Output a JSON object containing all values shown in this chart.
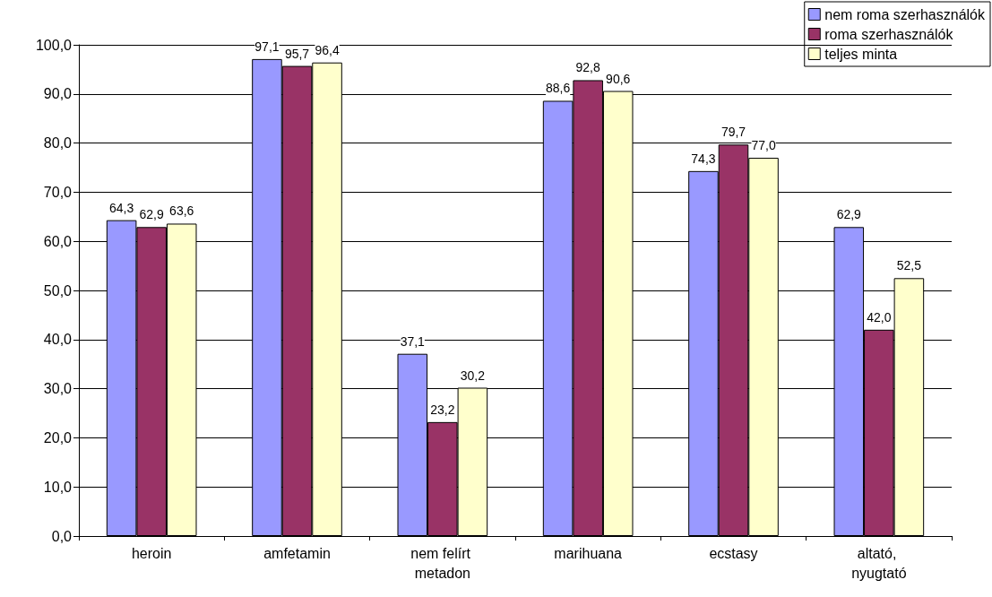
{
  "chart_data": {
    "type": "bar",
    "categories": [
      "heroin",
      "amfetamin",
      "nem felírt metadon",
      "marihuana",
      "ecstasy",
      "altató, nyugtató"
    ],
    "series": [
      {
        "name": "nem roma szerhasználók",
        "color": "#9999ff",
        "values": [
          64.3,
          97.1,
          37.1,
          88.6,
          74.3,
          62.9
        ],
        "value_labels": [
          "64,3",
          "97,1",
          "37,1",
          "88,6",
          "74,3",
          "62,9"
        ]
      },
      {
        "name": "roma szerhasználók",
        "color": "#993366",
        "values": [
          62.9,
          95.7,
          23.2,
          92.8,
          79.7,
          42.0
        ],
        "value_labels": [
          "62,9",
          "95,7",
          "23,2",
          "92,8",
          "79,7",
          "42,0"
        ]
      },
      {
        "name": "teljes minta",
        "color": "#ffffcc",
        "values": [
          63.6,
          96.4,
          30.2,
          90.6,
          77.0,
          52.5
        ],
        "value_labels": [
          "63,6",
          "96,4",
          "30,2",
          "90,6",
          "77,0",
          "52,5"
        ]
      }
    ],
    "ylim": [
      0,
      100
    ],
    "yticks": [
      {
        "value": 0,
        "label": "0,0"
      },
      {
        "value": 10,
        "label": "10,0"
      },
      {
        "value": 20,
        "label": "20,0"
      },
      {
        "value": 30,
        "label": "30,0"
      },
      {
        "value": 40,
        "label": "40,0"
      },
      {
        "value": 50,
        "label": "50,0"
      },
      {
        "value": 60,
        "label": "60,0"
      },
      {
        "value": 70,
        "label": "70,0"
      },
      {
        "value": 80,
        "label": "80,0"
      },
      {
        "value": 90,
        "label": "90,0"
      },
      {
        "value": 100,
        "label": "100,0"
      }
    ],
    "grid": "y",
    "legend": "top right"
  }
}
